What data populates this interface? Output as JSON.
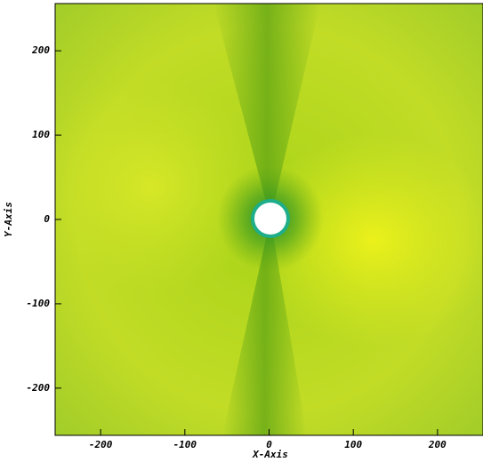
{
  "chart_data": {
    "type": "image",
    "x_label": "X-Axis",
    "y_label": "Y-Axis",
    "xlim": [
      -254,
      254
    ],
    "ylim": [
      -256,
      256
    ],
    "xticks": [
      -200,
      -100,
      0,
      100,
      200
    ],
    "yticks": [
      -200,
      -100,
      0,
      100,
      200
    ]
  }
}
